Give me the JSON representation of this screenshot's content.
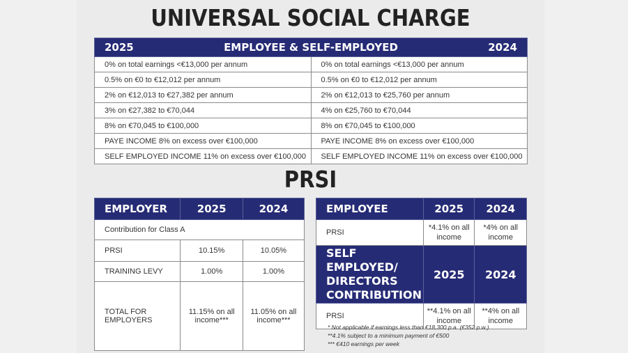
{
  "usc": {
    "title": "UNIVERSAL SOCIAL CHARGE",
    "header": {
      "year_left": "2025",
      "label": "EMPLOYEE & SELF-EMPLOYED",
      "year_right": "2024"
    },
    "rows": [
      {
        "y2025": "0% on total earnings <€13,000 per annum",
        "y2024": "0% on total earnings <€13,000 per annum"
      },
      {
        "y2025": "0.5% on €0 to €12,012 per annum",
        "y2024": "0.5% on €0 to €12,012 per annum"
      },
      {
        "y2025": "2% on €12,013 to €27,382 per annum",
        "y2024": "2% on €12,013 to €25,760 per annum"
      },
      {
        "y2025": "3% on €27,382 to €70,044",
        "y2024": "4% on €25,760 to €70,044"
      },
      {
        "y2025": "8% on €70,045 to €100,000",
        "y2024": "8% on €70,045 to €100,000"
      },
      {
        "y2025": "PAYE INCOME 8% on excess over €100,000",
        "y2024": "PAYE INCOME 8% on excess over €100,000"
      },
      {
        "y2025": "SELF EMPLOYED INCOME 11% on excess over €100,000",
        "y2024": "SELF EMPLOYED INCOME 11% on excess over €100,000"
      }
    ]
  },
  "prsi": {
    "title": "PRSI",
    "employer": {
      "header": {
        "label": "EMPLOYER",
        "y2025": "2025",
        "y2024": "2024"
      },
      "class_row": "Contribution for Class A",
      "rows": [
        {
          "label": "PRSI",
          "y2025": "10.15%",
          "y2024": "10.05%"
        },
        {
          "label": "TRAINING LEVY",
          "y2025": "1.00%",
          "y2024": "1.00%"
        },
        {
          "label": "TOTAL FOR EMPLOYERS",
          "y2025": "11.15% on all income***",
          "y2024": "11.05% on all income***"
        }
      ]
    },
    "employee": {
      "header": {
        "label": "EMPLOYEE",
        "y2025": "2025",
        "y2024": "2024"
      },
      "row": {
        "label": "PRSI",
        "y2025": "*4.1% on all income",
        "y2024": "*4% on all income"
      }
    },
    "self_employed": {
      "header": {
        "label": "SELF EMPLOYED/ DIRECTORS CONTRIBUTION",
        "y2025": "2025",
        "y2024": "2024"
      },
      "row": {
        "label": "PRSI",
        "y2025": "**4.1% on all income",
        "y2024": "**4% on all income"
      }
    },
    "footnotes": [
      "* Not applicable if earnings less than €18,300 p.a. (€352 p.w.)",
      "**4.1% subject to a minimum payment of €500",
      "*** €410 earnings per week"
    ]
  }
}
